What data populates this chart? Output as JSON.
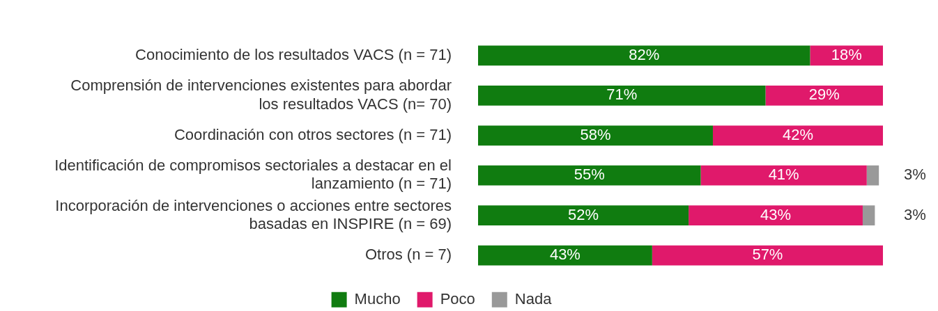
{
  "chart_data": {
    "type": "bar",
    "orientation": "horizontal",
    "stacked": true,
    "legend": "bottom",
    "categories": [
      "Conocimiento de los resultados VACS (n = 71)",
      "Comprensión de intervenciones existentes para abordar los resultados VACS (n= 70)",
      "Coordinación con otros sectores (n = 71)",
      "Identificación de compromisos sectoriales a destacar en el lanzamiento (n = 71)",
      "Incorporación de intervenciones o acciones entre sectores basadas en INSPIRE (n = 69)",
      "Otros (n = 7)"
    ],
    "series": [
      {
        "name": "Mucho",
        "color": "#107c10",
        "values": [
          82,
          71,
          58,
          55,
          52,
          43
        ],
        "value_labels": [
          "82%",
          "71%",
          "58%",
          "55%",
          "52%",
          "43%"
        ]
      },
      {
        "name": "Poco",
        "color": "#e0196b",
        "values": [
          18,
          29,
          42,
          41,
          43,
          57
        ],
        "value_labels": [
          "18%",
          "29%",
          "42%",
          "41%",
          "43%",
          "57%"
        ]
      },
      {
        "name": "Nada",
        "color": "#999999",
        "values": [
          null,
          null,
          null,
          3,
          3,
          null
        ],
        "value_labels": [
          null,
          null,
          null,
          "3%",
          "3%",
          null
        ]
      }
    ]
  }
}
